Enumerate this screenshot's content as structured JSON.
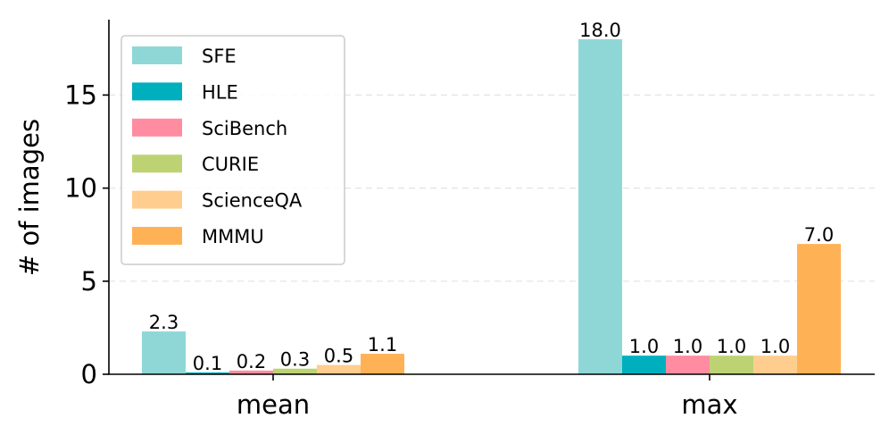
{
  "chart_data": {
    "type": "bar",
    "title": "",
    "xlabel": "",
    "ylabel": "# of images",
    "categories": [
      "mean",
      "max"
    ],
    "ylim": [
      0,
      19
    ],
    "yticks": [
      0,
      5,
      10,
      15
    ],
    "grid": "horizontal dashed",
    "legend_position": "top-left",
    "series": [
      {
        "name": "SFE",
        "color": "#8fd7d7",
        "values": [
          2.3,
          18.0
        ],
        "labels": [
          "2.3",
          "18.0"
        ]
      },
      {
        "name": "HLE",
        "color": "#00afbe",
        "values": [
          0.1,
          1.0
        ],
        "labels": [
          "0.1",
          "1.0"
        ]
      },
      {
        "name": "SciBench",
        "color": "#ff8ca1",
        "values": [
          0.2,
          1.0
        ],
        "labels": [
          "0.2",
          "1.0"
        ]
      },
      {
        "name": "CURIE",
        "color": "#bdd373",
        "values": [
          0.3,
          1.0
        ],
        "labels": [
          "0.3",
          "1.0"
        ]
      },
      {
        "name": "ScienceQA",
        "color": "#ffcd8e",
        "values": [
          0.5,
          1.0
        ],
        "labels": [
          "0.5",
          "1.0"
        ]
      },
      {
        "name": "MMMU",
        "color": "#ffb255",
        "values": [
          1.1,
          7.0
        ],
        "labels": [
          "1.1",
          "7.0"
        ]
      }
    ]
  }
}
